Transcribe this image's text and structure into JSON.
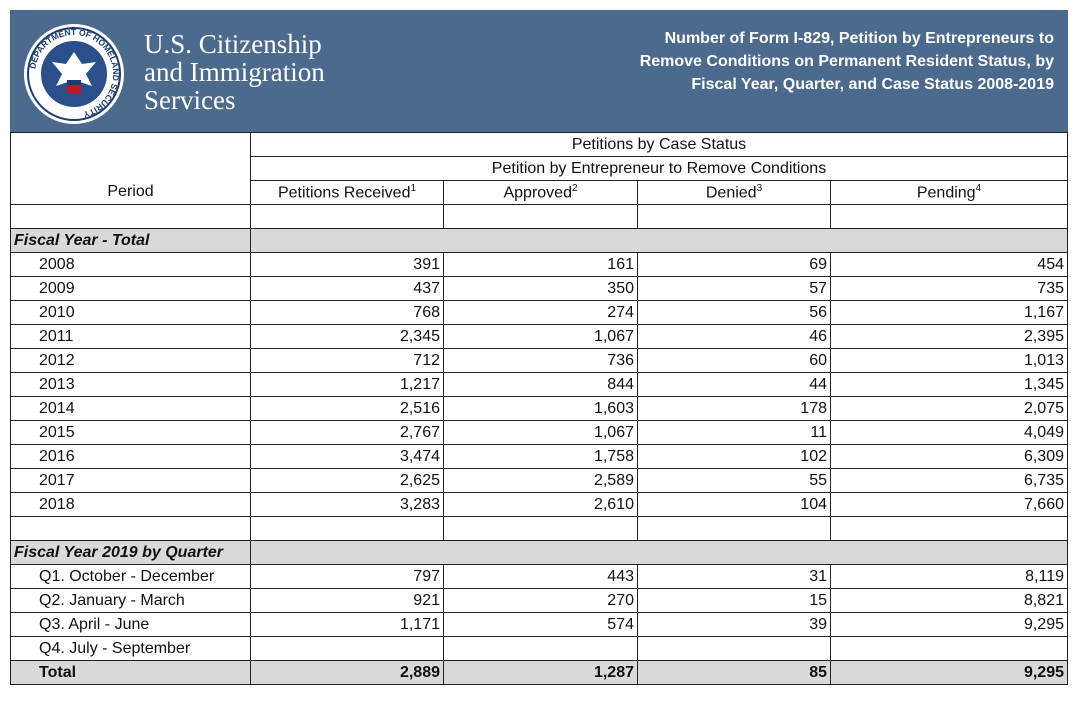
{
  "header": {
    "seal_text": "DEPARTMENT OF HOMELAND SECURITY",
    "agency_lines": [
      "U.S. Citizenship",
      "and Immigration",
      "Services"
    ],
    "title_lines": [
      "Number of Form I-829, Petition by Entrepreneurs to",
      "Remove Conditions on Permanent Resident Status, by",
      "Fiscal Year, Quarter, and Case Status  2008-2019"
    ]
  },
  "table": {
    "group_header": "Petitions by Case Status",
    "sub_header": "Petition by Entrepreneur to Remove Conditions",
    "period_header": "Period",
    "columns": [
      {
        "label": "Petitions Received",
        "note": "1"
      },
      {
        "label": "Approved",
        "note": "2"
      },
      {
        "label": "Denied",
        "note": "3"
      },
      {
        "label": "Pending",
        "note": "4"
      }
    ],
    "sections": [
      {
        "title": "Fiscal Year - Total",
        "rows": [
          [
            "2008",
            "391",
            "161",
            "69",
            "454"
          ],
          [
            "2009",
            "437",
            "350",
            "57",
            "735"
          ],
          [
            "2010",
            "768",
            "274",
            "56",
            "1,167"
          ],
          [
            "2011",
            "2,345",
            "1,067",
            "46",
            "2,395"
          ],
          [
            "2012",
            "712",
            "736",
            "60",
            "1,013"
          ],
          [
            "2013",
            "1,217",
            "844",
            "44",
            "1,345"
          ],
          [
            "2014",
            "2,516",
            "1,603",
            "178",
            "2,075"
          ],
          [
            "2015",
            "2,767",
            "1,067",
            "11",
            "4,049"
          ],
          [
            "2016",
            "3,474",
            "1,758",
            "102",
            "6,309"
          ],
          [
            "2017",
            "2,625",
            "2,589",
            "55",
            "6,735"
          ],
          [
            "2018",
            "3,283",
            "2,610",
            "104",
            "7,660"
          ]
        ]
      },
      {
        "title": "Fiscal Year 2019 by Quarter",
        "rows": [
          [
            "Q1. October - December",
            "797",
            "443",
            "31",
            "8,119"
          ],
          [
            "Q2. January - March",
            "921",
            "270",
            "15",
            "8,821"
          ],
          [
            "Q3. April - June",
            "1,171",
            "574",
            "39",
            "9,295"
          ],
          [
            "Q4. July - September",
            null,
            null,
            null,
            null
          ]
        ]
      }
    ],
    "total": [
      "Total",
      "2,889",
      "1,287",
      "85",
      "9,295"
    ]
  }
}
